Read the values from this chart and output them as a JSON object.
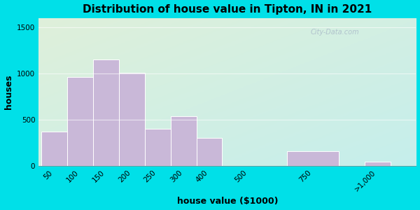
{
  "title": "Distribution of house value in Tipton, IN in 2021",
  "xlabel": "house value ($1000)",
  "ylabel": "houses",
  "bar_labels": [
    "50",
    "100",
    "150",
    "200",
    "250",
    "300",
    "400",
    "500",
    "750",
    ">1,000"
  ],
  "bar_values": [
    370,
    960,
    1150,
    1010,
    400,
    540,
    300,
    0,
    155,
    45
  ],
  "bar_color": "#c9b8d8",
  "bar_edge_color": "#ffffff",
  "background_outer": "#00e0e8",
  "background_inner_topleft": "#e5f5e0",
  "background_inner_bottomright": "#c8f0ee",
  "yticks": [
    0,
    500,
    1000,
    1500
  ],
  "ylim": [
    0,
    1600
  ],
  "title_fontsize": 11,
  "label_fontsize": 9,
  "tick_fontsize": 7.5,
  "watermark_text": "City-Data.com",
  "bar_positions": [
    0,
    1,
    2,
    3,
    4,
    5,
    6,
    7.5,
    9.5,
    12.5
  ],
  "bar_widths": [
    1,
    1,
    1,
    1,
    1,
    1,
    1,
    1,
    2,
    1
  ],
  "xlim": [
    -0.1,
    14.5
  ]
}
